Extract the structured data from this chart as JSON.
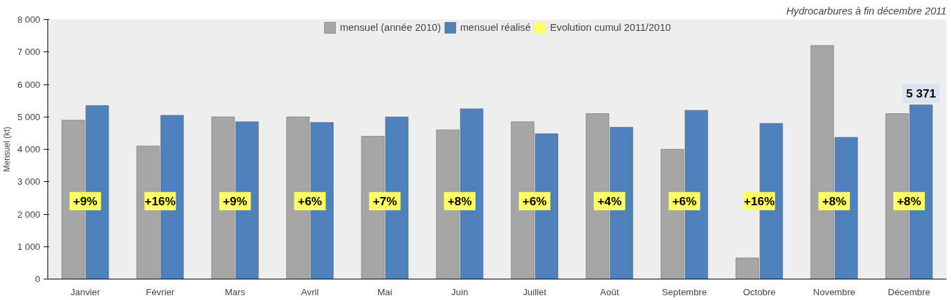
{
  "chart_data": {
    "type": "bar",
    "title": "Hydrocarbures à fin décembre 2011",
    "ylabel": "Mensuel (kt)",
    "categories": [
      "Janvier",
      "Février",
      "Mars",
      "Avril",
      "Mai",
      "Juin",
      "Juillet",
      "Août",
      "Septembre",
      "Octobre",
      "Novembre",
      "Décembre"
    ],
    "series": [
      {
        "name": "mensuel (année 2010)",
        "color": "#a6a6a6",
        "values": [
          4900,
          4100,
          5000,
          5000,
          4400,
          4600,
          4850,
          5100,
          4000,
          650,
          7200,
          5100
        ]
      },
      {
        "name": "mensuel réalisé",
        "color": "#4f81bd",
        "values": [
          5350,
          5050,
          4850,
          4830,
          5000,
          5250,
          4480,
          4680,
          5200,
          4800,
          4370,
          5371
        ],
        "value_labels": [
          null,
          null,
          null,
          null,
          null,
          null,
          null,
          null,
          null,
          null,
          null,
          "5 371"
        ]
      },
      {
        "name": "Evolution cumul 2011/2010",
        "type": "other",
        "color": "#ffff66",
        "values": [
          null,
          null,
          null,
          null,
          null,
          null,
          null,
          null,
          null,
          null,
          null,
          null
        ],
        "value_labels": [
          "+9%",
          "+16%",
          "+9%",
          "+6%",
          "+7%",
          "+8%",
          "+6%",
          "+4%",
          "+6%",
          "+16%",
          "+8%",
          "+8%"
        ]
      }
    ],
    "ylim": [
      0,
      8000
    ],
    "yticks": [
      0,
      {
        "value": 1000,
        "label": "1 000"
      },
      {
        "value": 2000,
        "label": "2 000"
      },
      {
        "value": 3000,
        "label": "3 000"
      },
      {
        "value": 4000,
        "label": "4 000"
      },
      {
        "value": 5000,
        "label": "5 000"
      },
      {
        "value": 6000,
        "label": "6 000"
      },
      {
        "value": 7000,
        "label": "7 000"
      },
      {
        "value": 8000,
        "label": "8 000"
      }
    ],
    "grid": false,
    "legend": "top"
  }
}
